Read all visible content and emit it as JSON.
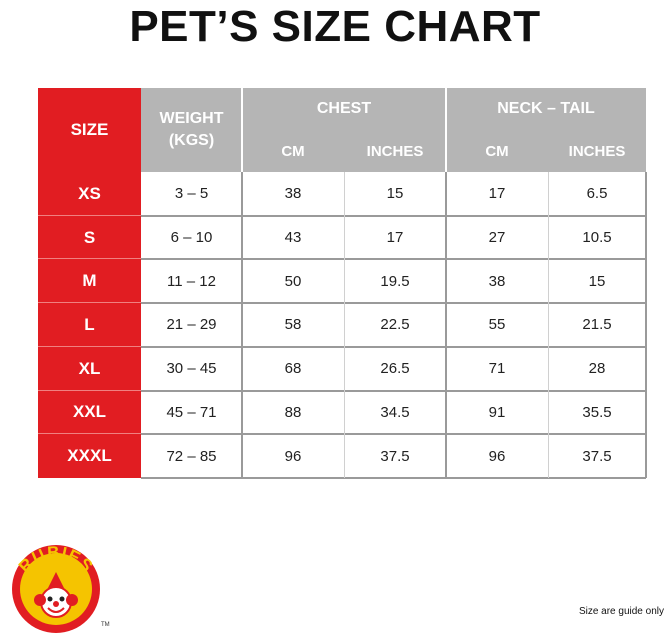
{
  "title": "PET’S SIZE CHART",
  "header": {
    "size": "SIZE",
    "weight_line1": "WEIGHT",
    "weight_line2": "(KGS)",
    "chest": "CHEST",
    "neck_tail": "NECK – TAIL",
    "cm": "CM",
    "inches": "INCHES"
  },
  "rows": [
    {
      "size": "XS",
      "weight": "3 – 5",
      "chest_cm": "38",
      "chest_in": "15",
      "neck_cm": "17",
      "neck_in": "6.5"
    },
    {
      "size": "S",
      "weight": "6 – 10",
      "chest_cm": "43",
      "chest_in": "17",
      "neck_cm": "27",
      "neck_in": "10.5"
    },
    {
      "size": "M",
      "weight": "11 – 12",
      "chest_cm": "50",
      "chest_in": "19.5",
      "neck_cm": "38",
      "neck_in": "15"
    },
    {
      "size": "L",
      "weight": "21 – 29",
      "chest_cm": "58",
      "chest_in": "22.5",
      "neck_cm": "55",
      "neck_in": "21.5"
    },
    {
      "size": "XL",
      "weight": "30 – 45",
      "chest_cm": "68",
      "chest_in": "26.5",
      "neck_cm": "71",
      "neck_in": "28"
    },
    {
      "size": "XXL",
      "weight": "45 – 71",
      "chest_cm": "88",
      "chest_in": "34.5",
      "neck_cm": "91",
      "neck_in": "35.5"
    },
    {
      "size": "XXXL",
      "weight": "72 – 85",
      "chest_cm": "96",
      "chest_in": "37.5",
      "neck_cm": "96",
      "neck_in": "37.5"
    }
  ],
  "logo": {
    "text": "RUBIES",
    "tm": "TM",
    "icon": "clown-face-icon"
  },
  "note": "Size are guide only",
  "colors": {
    "size_column": "#e11d22",
    "header": "#b5b5b5",
    "grid": "#9a9a9a"
  }
}
